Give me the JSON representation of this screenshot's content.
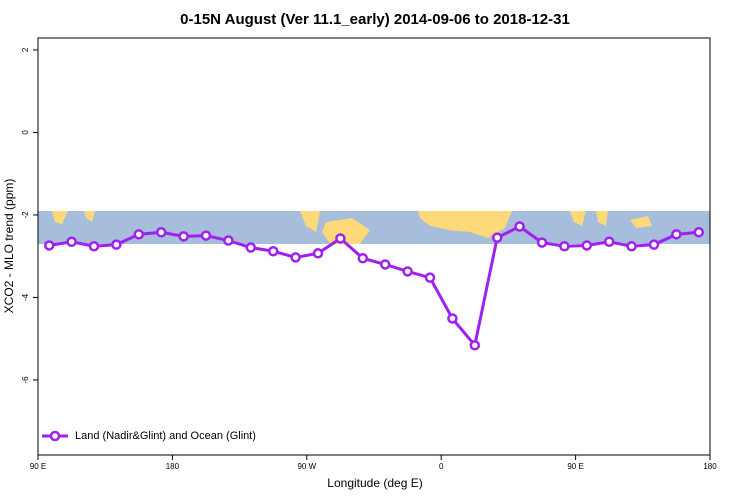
{
  "chart_data": {
    "type": "line",
    "title": "0-15N August (Ver 11.1_early)   2014-09-06 to 2018-12-31",
    "xlabel": "Longitude (deg E)",
    "ylabel": "XCO2 - MLO trend (ppm)",
    "x": [
      97.5,
      112.5,
      127.5,
      142.5,
      157.5,
      172.5,
      187.5,
      202.5,
      217.5,
      232.5,
      247.5,
      262.5,
      277.5,
      292.5,
      307.5,
      322.5,
      337.5,
      352.5,
      367.5,
      382.5,
      397.5,
      412.5,
      427.5,
      442.5,
      457.5,
      472.5,
      487.5,
      502.5,
      517.5,
      532.5
    ],
    "series": [
      {
        "name": "Land (Nadir&Glint) and Ocean (Glint)",
        "color": "#a020f0",
        "values": [
          -2.74,
          -2.65,
          -2.76,
          -2.72,
          -2.47,
          -2.42,
          -2.52,
          -2.5,
          -2.62,
          -2.79,
          -2.88,
          -3.03,
          -2.93,
          -2.57,
          -3.05,
          -3.2,
          -3.37,
          -3.52,
          -4.51,
          -5.16,
          -2.55,
          -2.28,
          -2.67,
          -2.76,
          -2.74,
          -2.65,
          -2.76,
          -2.72,
          -2.47,
          -2.42
        ]
      }
    ],
    "xlim": [
      90,
      540
    ],
    "xticks": [
      {
        "value": 90,
        "label": "90 E"
      },
      {
        "value": 180,
        "label": "180"
      },
      {
        "value": 270,
        "label": "90 W"
      },
      {
        "value": 360,
        "label": "0"
      },
      {
        "value": 450,
        "label": "90 E"
      },
      {
        "value": 540,
        "label": "180"
      }
    ],
    "ylim": [
      -7.82,
      2.29
    ],
    "yticks": [
      2,
      0,
      -2,
      -4,
      -6
    ],
    "legend": "bottom-left"
  }
}
